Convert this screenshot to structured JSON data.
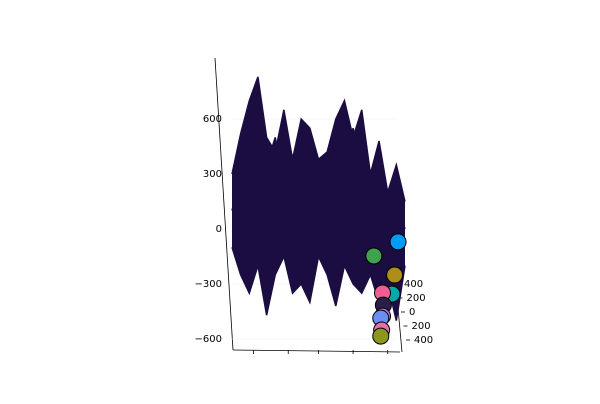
{
  "chart_data": {
    "type": "surface",
    "xlim": [
      0,
      20
    ],
    "xticks": [
      2.5,
      6.5,
      10,
      14,
      18
    ],
    "ylim": [
      -400,
      400
    ],
    "yticks": [
      {
        "value": -400,
        "label": "400"
      },
      {
        "value": -200,
        "label": "200"
      },
      0,
      200,
      400
    ],
    "zlim": [
      -650,
      850
    ],
    "zticks": [
      {
        "value": 600,
        "label": "600"
      },
      {
        "value": 300,
        "label": "300"
      },
      0,
      {
        "value": -300,
        "label": "−300"
      },
      {
        "value": -600,
        "label": "−600"
      }
    ],
    "colormap": [
      "#1b0c41",
      "#4a0c6b",
      "#781c6d",
      "#a52c60",
      "#cf4446",
      "#ed6925",
      "#fb9b06",
      "#d9b830"
    ],
    "rows": [
      [
        300,
        520,
        700,
        830,
        500,
        420,
        650,
        380,
        600,
        550,
        380,
        420,
        600,
        700,
        500,
        650,
        300,
        480,
        200,
        350,
        150
      ],
      [
        100,
        300,
        450,
        200,
        350,
        500,
        250,
        400,
        300,
        200,
        350,
        280,
        150,
        400,
        550,
        300,
        100,
        250,
        50,
        150,
        0
      ],
      [
        -100,
        -250,
        -350,
        -200,
        -470,
        -250,
        -150,
        -350,
        -300,
        -400,
        -150,
        -250,
        -420,
        -200,
        -300,
        -350,
        -250,
        -400,
        -300,
        -500,
        -200
      ]
    ],
    "points": {
      "x": [
        19.2,
        16.4,
        18.8,
        18.5,
        17.4,
        17.5,
        17.4,
        17.2,
        17.3,
        17.2
      ],
      "z": [
        -70,
        -147,
        -251,
        -355,
        -349,
        -415,
        -475,
        -486,
        -551,
        -584
      ],
      "colors": [
        "#009af9",
        "#3da44d",
        "#ac8e18",
        "#00a9ad",
        "#ed5e93",
        "#2b1d4a",
        "#c271d2",
        "#6b8ef5",
        "#e26fae",
        "#8e971d"
      ]
    }
  }
}
